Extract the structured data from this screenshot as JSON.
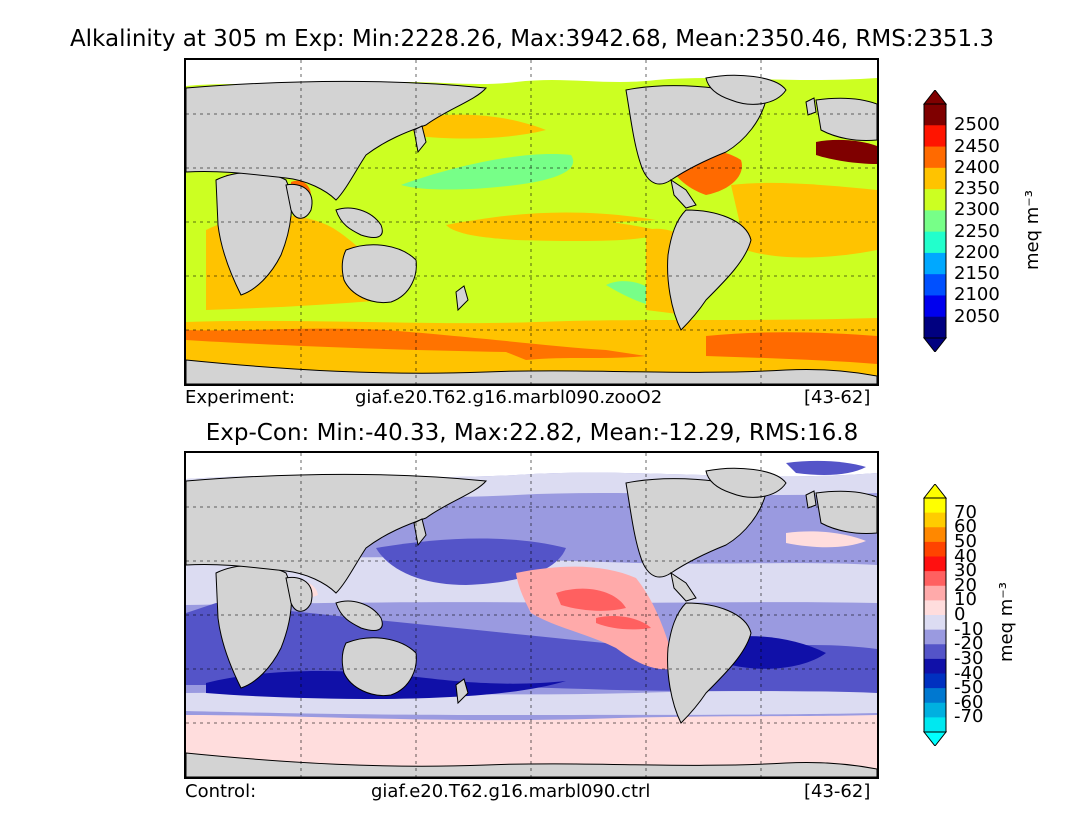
{
  "top": {
    "title": "Alkalinity at 305 m Exp: Min:2228.26, Max:3942.68, Mean:2350.46, RMS:2351.3",
    "caption_left": "Experiment:",
    "caption_case": "giaf.e20.T62.g16.marbl090.zooO2",
    "caption_years": "[43-62]",
    "colorbar": {
      "units": "meq m⁻³",
      "labels": [
        "2500",
        "2450",
        "2400",
        "2350",
        "2300",
        "2250",
        "2200",
        "2150",
        "2100",
        "2050"
      ],
      "colors": [
        "#7f0000",
        "#ff1400",
        "#ff6a00",
        "#ffc300",
        "#ccff22",
        "#77ff88",
        "#22ffcc",
        "#00a8ff",
        "#0050ff",
        "#0000ee",
        "#000080"
      ],
      "over_color": "#7f0000",
      "under_color": "#000080"
    }
  },
  "bottom": {
    "title": "Exp-Con: Min:-40.33, Max:22.82, Mean:-12.29, RMS:16.8",
    "caption_left": "Control:",
    "caption_case": "giaf.e20.T62.g16.marbl090.ctrl",
    "caption_years": "[43-62]",
    "colorbar": {
      "units": "meq m⁻³",
      "labels": [
        "70",
        "60",
        "50",
        "40",
        "30",
        "20",
        "10",
        "0",
        "-10",
        "-20",
        "-30",
        "-40",
        "-50",
        "-60",
        "-70"
      ],
      "colors": [
        "#ffff00",
        "#ffcc00",
        "#ff8800",
        "#ff4400",
        "#ff1010",
        "#ff6060",
        "#ffaaaa",
        "#ffdddd",
        "#dcdcf2",
        "#9a9ae0",
        "#5454c8",
        "#1010a8",
        "#0030c0",
        "#0078d0",
        "#00b0e0",
        "#00e8f0"
      ],
      "over_color": "#ffff00",
      "under_color": "#00ffff"
    }
  }
}
